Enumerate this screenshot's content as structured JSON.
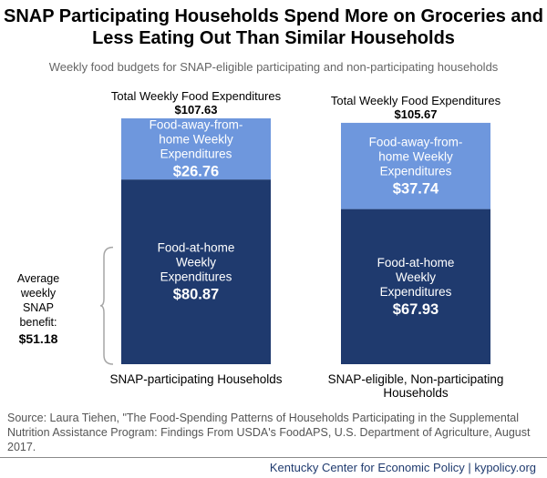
{
  "title_line1": "SNAP Participating Households Spend More on Groceries and",
  "title_line2": "Less Eating Out Than Similar Households",
  "subtitle": "Weekly food budgets for SNAP-eligible participating and non-participating households",
  "chart_data": {
    "type": "bar",
    "stacked": true,
    "categories": [
      "SNAP-participating Households",
      "SNAP-eligible, Non-participating Households"
    ],
    "category_label_lines": [
      [
        "SNAP-participating Households"
      ],
      [
        "SNAP-eligible, Non-participating",
        "Households"
      ]
    ],
    "totals_label": "Total Weekly Food Expenditures",
    "totals": [
      "$107.63",
      "$105.67"
    ],
    "series": [
      {
        "name": "Food-at-home Weekly Expenditures",
        "label_lines": [
          "Food-at-home",
          "Weekly",
          "Expenditures"
        ],
        "values": [
          80.87,
          67.93
        ],
        "value_labels": [
          "$80.87",
          "$67.93"
        ],
        "color": "#1f3a6e"
      },
      {
        "name": "Food-away-from-home Weekly Expenditures",
        "label_lines": [
          "Food-away-from-",
          "home Weekly",
          "Expenditures"
        ],
        "values": [
          26.76,
          37.74
        ],
        "value_labels": [
          "$26.76",
          "$37.74"
        ],
        "color": "#6e97dd"
      }
    ],
    "ylim": [
      0,
      107.63
    ],
    "grid": false
  },
  "bracket": {
    "label_lines": [
      "Average",
      "weekly",
      "SNAP",
      "benefit:"
    ],
    "value": "$51.18",
    "amount": 51.18
  },
  "source": "Source: Laura Tiehen, \"The Food-Spending Patterns of Households Participating in the Supplemental Nutrition Assistance Program: Findings From USDA's FoodAPS, U.S. Department of Agriculture, August 2017.",
  "footer": "Kentucky Center for Economic Policy | kypolicy.org"
}
